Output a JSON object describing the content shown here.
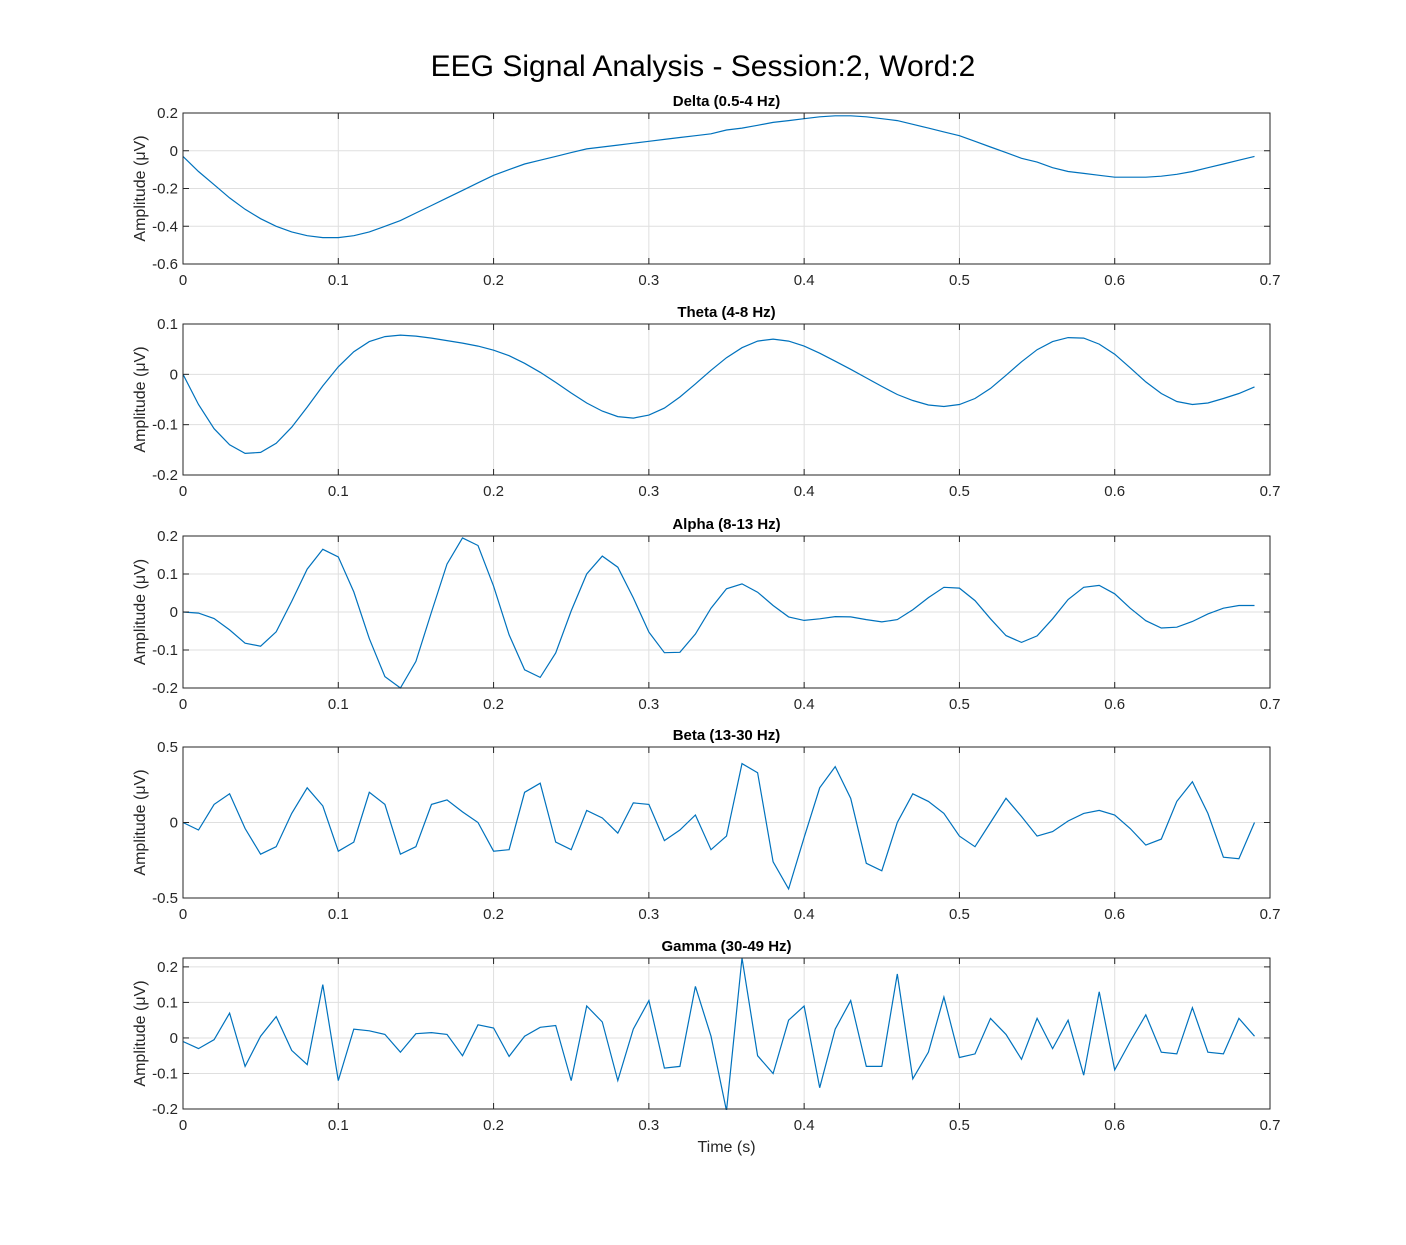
{
  "figure_title": "EEG Signal Analysis - Session:2, Word:2",
  "colors": {
    "line": "#0072BD",
    "grid": "#DFDFDF",
    "axes": "#262626"
  },
  "chart_data": [
    {
      "type": "line",
      "title": "Delta (0.5-4 Hz)",
      "ylabel": "Amplitude (μV)",
      "xlabel": "",
      "xlim": [
        0,
        0.7
      ],
      "ylim": [
        -0.6,
        0.2
      ],
      "xticks": [
        "0",
        "0.1",
        "0.2",
        "0.3",
        "0.4",
        "0.5",
        "0.6",
        "0.7"
      ],
      "yticks": [
        "-0.6",
        "-0.4",
        "-0.2",
        "0",
        "0.2"
      ],
      "grid": true,
      "x": [
        0,
        0.01,
        0.02,
        0.03,
        0.04,
        0.05,
        0.06,
        0.07,
        0.08,
        0.09,
        0.1,
        0.11,
        0.12,
        0.13,
        0.14,
        0.15,
        0.16,
        0.17,
        0.18,
        0.19,
        0.2,
        0.21,
        0.22,
        0.23,
        0.24,
        0.25,
        0.26,
        0.27,
        0.28,
        0.29,
        0.3,
        0.31,
        0.32,
        0.33,
        0.34,
        0.35,
        0.36,
        0.37,
        0.38,
        0.39,
        0.4,
        0.41,
        0.42,
        0.43,
        0.44,
        0.45,
        0.46,
        0.47,
        0.48,
        0.49,
        0.5,
        0.51,
        0.52,
        0.53,
        0.54,
        0.55,
        0.56,
        0.57,
        0.58,
        0.59,
        0.6,
        0.61,
        0.62,
        0.63,
        0.64,
        0.65,
        0.66,
        0.67,
        0.68,
        0.69
      ],
      "y": [
        -0.03,
        -0.11,
        -0.18,
        -0.25,
        -0.31,
        -0.36,
        -0.4,
        -0.43,
        -0.45,
        -0.46,
        -0.46,
        -0.45,
        -0.43,
        -0.4,
        -0.37,
        -0.33,
        -0.29,
        -0.25,
        -0.21,
        -0.17,
        -0.13,
        -0.1,
        -0.07,
        -0.05,
        -0.03,
        -0.01,
        0.01,
        0.02,
        0.03,
        0.04,
        0.05,
        0.06,
        0.07,
        0.08,
        0.09,
        0.11,
        0.12,
        0.135,
        0.15,
        0.16,
        0.17,
        0.18,
        0.185,
        0.185,
        0.18,
        0.17,
        0.16,
        0.14,
        0.12,
        0.1,
        0.08,
        0.05,
        0.02,
        -0.01,
        -0.04,
        -0.06,
        -0.09,
        -0.11,
        -0.12,
        -0.13,
        -0.14,
        -0.14,
        -0.14,
        -0.135,
        -0.125,
        -0.11,
        -0.09,
        -0.07,
        -0.05,
        -0.03
      ]
    },
    {
      "type": "line",
      "title": "Theta (4-8 Hz)",
      "ylabel": "Amplitude (μV)",
      "xlabel": "",
      "xlim": [
        0,
        0.7
      ],
      "ylim": [
        -0.2,
        0.1
      ],
      "xticks": [
        "0",
        "0.1",
        "0.2",
        "0.3",
        "0.4",
        "0.5",
        "0.6",
        "0.7"
      ],
      "yticks": [
        "-0.2",
        "-0.1",
        "0",
        "0.1"
      ],
      "grid": true,
      "x": [
        0,
        0.01,
        0.02,
        0.03,
        0.04,
        0.05,
        0.06,
        0.07,
        0.08,
        0.09,
        0.1,
        0.11,
        0.12,
        0.13,
        0.14,
        0.15,
        0.16,
        0.17,
        0.18,
        0.19,
        0.2,
        0.21,
        0.22,
        0.23,
        0.24,
        0.25,
        0.26,
        0.27,
        0.28,
        0.29,
        0.3,
        0.31,
        0.32,
        0.33,
        0.34,
        0.35,
        0.36,
        0.37,
        0.38,
        0.39,
        0.4,
        0.41,
        0.42,
        0.43,
        0.44,
        0.45,
        0.46,
        0.47,
        0.48,
        0.49,
        0.5,
        0.51,
        0.52,
        0.53,
        0.54,
        0.55,
        0.56,
        0.57,
        0.58,
        0.59,
        0.6,
        0.61,
        0.62,
        0.63,
        0.64,
        0.65,
        0.66,
        0.67,
        0.68,
        0.69
      ],
      "y": [
        0.0,
        -0.06,
        -0.108,
        -0.14,
        -0.157,
        -0.155,
        -0.137,
        -0.105,
        -0.065,
        -0.023,
        0.015,
        0.045,
        0.065,
        0.075,
        0.078,
        0.076,
        0.072,
        0.067,
        0.062,
        0.056,
        0.048,
        0.037,
        0.022,
        0.004,
        -0.016,
        -0.037,
        -0.057,
        -0.073,
        -0.084,
        -0.087,
        -0.081,
        -0.067,
        -0.045,
        -0.019,
        0.008,
        0.033,
        0.053,
        0.066,
        0.07,
        0.066,
        0.056,
        0.042,
        0.026,
        0.01,
        -0.007,
        -0.024,
        -0.04,
        -0.052,
        -0.061,
        -0.064,
        -0.06,
        -0.048,
        -0.028,
        -0.002,
        0.025,
        0.049,
        0.065,
        0.073,
        0.072,
        0.06,
        0.04,
        0.013,
        -0.015,
        -0.038,
        -0.054,
        -0.06,
        -0.057,
        -0.048,
        -0.038,
        -0.025
      ]
    },
    {
      "type": "line",
      "title": "Alpha (8-13 Hz)",
      "ylabel": "Amplitude (μV)",
      "xlabel": "",
      "xlim": [
        0,
        0.7
      ],
      "ylim": [
        -0.2,
        0.2
      ],
      "xticks": [
        "0",
        "0.1",
        "0.2",
        "0.3",
        "0.4",
        "0.5",
        "0.6",
        "0.7"
      ],
      "yticks": [
        "-0.2",
        "-0.1",
        "0",
        "0.1",
        "0.2"
      ],
      "grid": true,
      "x": [
        0,
        0.01,
        0.02,
        0.03,
        0.04,
        0.05,
        0.06,
        0.07,
        0.08,
        0.09,
        0.1,
        0.11,
        0.12,
        0.13,
        0.14,
        0.15,
        0.16,
        0.17,
        0.18,
        0.19,
        0.2,
        0.21,
        0.22,
        0.23,
        0.24,
        0.25,
        0.26,
        0.27,
        0.28,
        0.29,
        0.3,
        0.31,
        0.32,
        0.33,
        0.34,
        0.35,
        0.36,
        0.37,
        0.38,
        0.39,
        0.4,
        0.41,
        0.42,
        0.43,
        0.44,
        0.45,
        0.46,
        0.47,
        0.48,
        0.49,
        0.5,
        0.51,
        0.52,
        0.53,
        0.54,
        0.55,
        0.56,
        0.57,
        0.58,
        0.59,
        0.6,
        0.61,
        0.62,
        0.63,
        0.64,
        0.65,
        0.66,
        0.67,
        0.68,
        0.69
      ],
      "y": [
        0.0,
        -0.003,
        -0.017,
        -0.047,
        -0.082,
        -0.09,
        -0.052,
        0.028,
        0.113,
        0.165,
        0.145,
        0.053,
        -0.07,
        -0.17,
        -0.2,
        -0.13,
        0.0,
        0.126,
        0.195,
        0.175,
        0.068,
        -0.06,
        -0.152,
        -0.172,
        -0.108,
        0.003,
        0.1,
        0.147,
        0.118,
        0.037,
        -0.053,
        -0.107,
        -0.106,
        -0.058,
        0.01,
        0.061,
        0.074,
        0.052,
        0.017,
        -0.013,
        -0.022,
        -0.018,
        -0.012,
        -0.013,
        -0.02,
        -0.026,
        -0.02,
        0.006,
        0.038,
        0.065,
        0.063,
        0.03,
        -0.018,
        -0.062,
        -0.08,
        -0.063,
        -0.018,
        0.033,
        0.065,
        0.07,
        0.048,
        0.01,
        -0.023,
        -0.042,
        -0.04,
        -0.025,
        -0.005,
        0.01,
        0.017,
        0.017
      ]
    },
    {
      "type": "line",
      "title": "Beta (13-30 Hz)",
      "ylabel": "Amplitude (μV)",
      "xlabel": "",
      "xlim": [
        0,
        0.7
      ],
      "ylim": [
        -0.5,
        0.5
      ],
      "xticks": [
        "0",
        "0.1",
        "0.2",
        "0.3",
        "0.4",
        "0.5",
        "0.6",
        "0.7"
      ],
      "yticks": [
        "-0.5",
        "0",
        "0.5"
      ],
      "grid": true,
      "x": [
        0,
        0.01,
        0.02,
        0.03,
        0.04,
        0.05,
        0.06,
        0.07,
        0.08,
        0.09,
        0.1,
        0.11,
        0.12,
        0.13,
        0.14,
        0.15,
        0.16,
        0.17,
        0.18,
        0.19,
        0.2,
        0.21,
        0.22,
        0.23,
        0.24,
        0.25,
        0.26,
        0.27,
        0.28,
        0.29,
        0.3,
        0.31,
        0.32,
        0.33,
        0.34,
        0.35,
        0.36,
        0.37,
        0.38,
        0.39,
        0.4,
        0.41,
        0.42,
        0.43,
        0.44,
        0.45,
        0.46,
        0.47,
        0.48,
        0.49,
        0.5,
        0.51,
        0.52,
        0.53,
        0.54,
        0.55,
        0.56,
        0.57,
        0.58,
        0.59,
        0.6,
        0.61,
        0.62,
        0.63,
        0.64,
        0.65,
        0.66,
        0.67,
        0.68,
        0.69
      ],
      "y": [
        0.0,
        -0.05,
        0.12,
        0.19,
        -0.04,
        -0.21,
        -0.16,
        0.06,
        0.23,
        0.11,
        -0.19,
        -0.13,
        0.2,
        0.12,
        -0.21,
        -0.16,
        0.12,
        0.15,
        0.07,
        0.0,
        -0.19,
        -0.18,
        0.2,
        0.26,
        -0.13,
        -0.18,
        0.08,
        0.03,
        -0.07,
        0.13,
        0.12,
        -0.12,
        -0.05,
        0.05,
        -0.18,
        -0.09,
        0.39,
        0.33,
        -0.26,
        -0.44,
        -0.1,
        0.23,
        0.37,
        0.16,
        -0.27,
        -0.32,
        0.0,
        0.19,
        0.14,
        0.06,
        -0.09,
        -0.16,
        0.0,
        0.16,
        0.04,
        -0.09,
        -0.06,
        0.01,
        0.06,
        0.08,
        0.05,
        -0.04,
        -0.15,
        -0.11,
        0.14,
        0.27,
        0.06,
        -0.23,
        -0.24,
        0.0
      ]
    },
    {
      "type": "line",
      "title": "Gamma (30-49 Hz)",
      "ylabel": "Amplitude (μV)",
      "xlabel": "Time (s)",
      "xlim": [
        0,
        0.7
      ],
      "ylim": [
        -0.2,
        0.225
      ],
      "xticks": [
        "0",
        "0.1",
        "0.2",
        "0.3",
        "0.4",
        "0.5",
        "0.6",
        "0.7"
      ],
      "yticks": [
        "-0.2",
        "-0.1",
        "0",
        "0.1",
        "0.2"
      ],
      "grid": true,
      "x": [
        0,
        0.01,
        0.02,
        0.03,
        0.04,
        0.05,
        0.06,
        0.07,
        0.08,
        0.09,
        0.1,
        0.11,
        0.12,
        0.13,
        0.14,
        0.15,
        0.16,
        0.17,
        0.18,
        0.19,
        0.2,
        0.21,
        0.22,
        0.23,
        0.24,
        0.25,
        0.26,
        0.27,
        0.28,
        0.29,
        0.3,
        0.31,
        0.32,
        0.33,
        0.34,
        0.35,
        0.36,
        0.37,
        0.38,
        0.39,
        0.4,
        0.41,
        0.42,
        0.43,
        0.44,
        0.45,
        0.46,
        0.47,
        0.48,
        0.49,
        0.5,
        0.51,
        0.52,
        0.53,
        0.54,
        0.55,
        0.56,
        0.57,
        0.58,
        0.59,
        0.6,
        0.61,
        0.62,
        0.63,
        0.64,
        0.65,
        0.66,
        0.67,
        0.68,
        0.69
      ],
      "y": [
        -0.01,
        -0.03,
        -0.005,
        0.07,
        -0.08,
        0.005,
        0.06,
        -0.035,
        -0.075,
        0.15,
        -0.12,
        0.025,
        0.02,
        0.01,
        -0.04,
        0.012,
        0.015,
        0.01,
        -0.05,
        0.037,
        0.028,
        -0.052,
        0.005,
        0.03,
        0.035,
        -0.12,
        0.09,
        0.045,
        -0.12,
        0.025,
        0.105,
        -0.085,
        -0.08,
        0.145,
        0.005,
        -0.205,
        0.225,
        -0.05,
        -0.1,
        0.05,
        0.09,
        -0.14,
        0.025,
        0.105,
        -0.08,
        -0.08,
        0.18,
        -0.115,
        -0.04,
        0.115,
        -0.055,
        -0.045,
        0.055,
        0.01,
        -0.06,
        0.055,
        -0.03,
        0.05,
        -0.105,
        0.13,
        -0.09,
        -0.01,
        0.065,
        -0.04,
        -0.045,
        0.085,
        -0.04,
        -0.045,
        0.055,
        0.005
      ]
    }
  ]
}
